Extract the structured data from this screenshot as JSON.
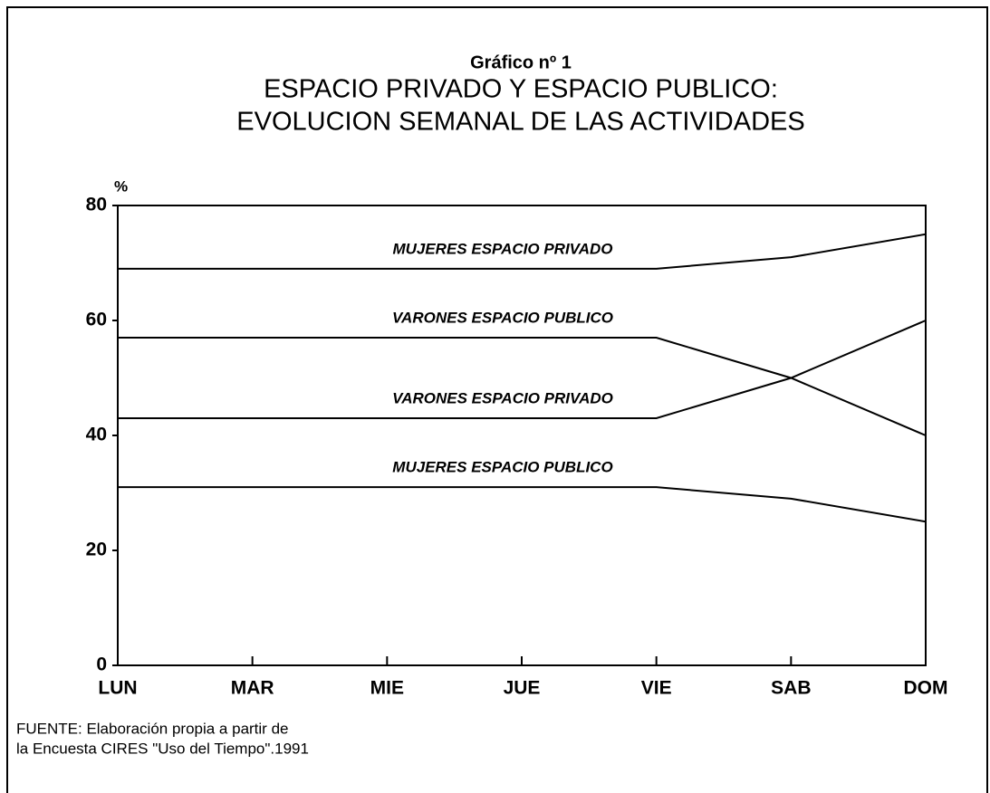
{
  "chart_data": {
    "type": "line",
    "header": "Gráfico nº 1",
    "title": [
      "ESPACIO PRIVADO Y ESPACIO PUBLICO:",
      "EVOLUCION SEMANAL DE LAS ACTIVIDADES"
    ],
    "y_label": "%",
    "categories": [
      "LUN",
      "MAR",
      "MIE",
      "JUE",
      "VIE",
      "SAB",
      "DOM"
    ],
    "series": [
      {
        "name": "MUJERES ESPACIO PRIVADO",
        "color": "#000000",
        "values": [
          69,
          69,
          69,
          69,
          69,
          71,
          75
        ]
      },
      {
        "name": "VARONES ESPACIO PUBLICO",
        "color": "#000000",
        "values": [
          57,
          57,
          57,
          57,
          57,
          50,
          40
        ]
      },
      {
        "name": "VARONES ESPACIO PRIVADO",
        "color": "#000000",
        "values": [
          43,
          43,
          43,
          43,
          43,
          50,
          60
        ]
      },
      {
        "name": "MUJERES ESPACIO PUBLICO",
        "color": "#000000",
        "values": [
          31,
          31,
          31,
          31,
          31,
          29,
          25
        ]
      }
    ],
    "ylim": [
      0,
      80
    ],
    "yticks": [
      0,
      20,
      40,
      60,
      80
    ],
    "grid": false,
    "source": [
      "FUENTE: Elaboración propia a partir de",
      "la Encuesta CIRES \"Uso del Tiempo\".1991"
    ]
  }
}
